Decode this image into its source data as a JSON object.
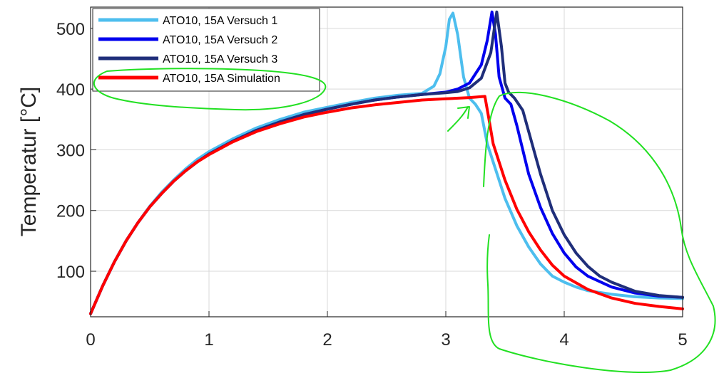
{
  "chart_data": {
    "type": "line",
    "title": "",
    "xlabel": "",
    "ylabel": "Temperatur [°C]",
    "xlim": [
      0,
      5
    ],
    "ylim": [
      25,
      535
    ],
    "xticks": [
      "0",
      "1",
      "2",
      "3",
      "4",
      "5"
    ],
    "yticks": [
      "100",
      "200",
      "300",
      "400",
      "500"
    ],
    "grid": true,
    "legend_position": "top-left",
    "series": [
      {
        "name": "ATO10, 15A Versuch 1",
        "color": "#4DBEEE",
        "x": [
          0,
          0.1,
          0.2,
          0.3,
          0.4,
          0.5,
          0.6,
          0.7,
          0.8,
          0.9,
          1.0,
          1.2,
          1.4,
          1.6,
          1.8,
          2.0,
          2.2,
          2.4,
          2.6,
          2.8,
          2.9,
          2.95,
          3.0,
          3.03,
          3.06,
          3.1,
          3.15,
          3.2,
          3.25,
          3.3,
          3.35,
          3.4,
          3.5,
          3.6,
          3.7,
          3.8,
          3.9,
          4.0,
          4.1,
          4.2,
          4.4,
          4.6,
          4.8,
          5.0
        ],
        "y": [
          30,
          75,
          115,
          150,
          180,
          207,
          230,
          250,
          268,
          284,
          297,
          318,
          336,
          350,
          362,
          370,
          378,
          385,
          390,
          393,
          405,
          425,
          470,
          515,
          525,
          490,
          420,
          385,
          375,
          360,
          310,
          280,
          220,
          175,
          140,
          112,
          92,
          82,
          74,
          68,
          62,
          58,
          56,
          55
        ]
      },
      {
        "name": "ATO10, 15A Versuch 2",
        "color": "#0000EE",
        "x": [
          0,
          0.1,
          0.2,
          0.3,
          0.4,
          0.5,
          0.6,
          0.7,
          0.8,
          0.9,
          1.0,
          1.2,
          1.4,
          1.6,
          1.8,
          2.0,
          2.2,
          2.4,
          2.6,
          2.8,
          3.0,
          3.1,
          3.2,
          3.3,
          3.35,
          3.39,
          3.42,
          3.45,
          3.5,
          3.55,
          3.6,
          3.7,
          3.8,
          3.9,
          4.0,
          4.1,
          4.2,
          4.4,
          4.6,
          4.8,
          5.0
        ],
        "y": [
          30,
          75,
          115,
          150,
          180,
          206,
          228,
          248,
          265,
          280,
          293,
          314,
          332,
          346,
          358,
          367,
          375,
          382,
          387,
          391,
          395,
          400,
          410,
          440,
          480,
          527,
          490,
          420,
          385,
          375,
          340,
          260,
          205,
          162,
          130,
          107,
          92,
          74,
          64,
          59,
          57
        ]
      },
      {
        "name": "ATO10, 15A Versuch 3",
        "color": "#1F2E7A",
        "x": [
          0,
          0.1,
          0.2,
          0.3,
          0.4,
          0.5,
          0.6,
          0.7,
          0.8,
          0.9,
          1.0,
          1.2,
          1.4,
          1.6,
          1.8,
          2.0,
          2.2,
          2.4,
          2.6,
          2.8,
          3.0,
          3.1,
          3.2,
          3.3,
          3.38,
          3.43,
          3.47,
          3.5,
          3.53,
          3.58,
          3.65,
          3.7,
          3.8,
          3.9,
          4.0,
          4.1,
          4.2,
          4.3,
          4.4,
          4.6,
          4.8,
          5.0
        ],
        "y": [
          30,
          75,
          115,
          150,
          180,
          206,
          228,
          248,
          265,
          280,
          293,
          314,
          332,
          346,
          358,
          367,
          375,
          382,
          387,
          391,
          394,
          396,
          402,
          418,
          460,
          527,
          470,
          410,
          395,
          385,
          365,
          330,
          260,
          200,
          160,
          130,
          108,
          92,
          82,
          67,
          60,
          57
        ]
      },
      {
        "name": "ATO10, 15A Simulation",
        "color": "#FF0000",
        "x": [
          0,
          0.1,
          0.2,
          0.3,
          0.4,
          0.5,
          0.6,
          0.7,
          0.8,
          0.9,
          1.0,
          1.2,
          1.4,
          1.6,
          1.8,
          2.0,
          2.2,
          2.4,
          2.6,
          2.8,
          3.0,
          3.2,
          3.33,
          3.36,
          3.4,
          3.5,
          3.6,
          3.7,
          3.8,
          3.9,
          4.0,
          4.2,
          4.4,
          4.6,
          4.8,
          5.0
        ],
        "y": [
          30,
          75,
          115,
          150,
          180,
          206,
          228,
          248,
          265,
          280,
          292,
          313,
          330,
          343,
          354,
          362,
          369,
          374,
          378,
          382,
          384,
          386,
          388,
          355,
          310,
          250,
          202,
          165,
          135,
          110,
          92,
          70,
          56,
          47,
          42,
          38
        ]
      }
    ]
  },
  "annotations": {
    "color": "#22E022",
    "items": [
      {
        "type": "hand-drawn-ellipse",
        "target": "legend-simulation-entry"
      },
      {
        "type": "hand-drawn-arrow",
        "target": "simulation-curve-peak"
      },
      {
        "type": "hand-drawn-loop",
        "target": "cooling-region"
      }
    ]
  }
}
